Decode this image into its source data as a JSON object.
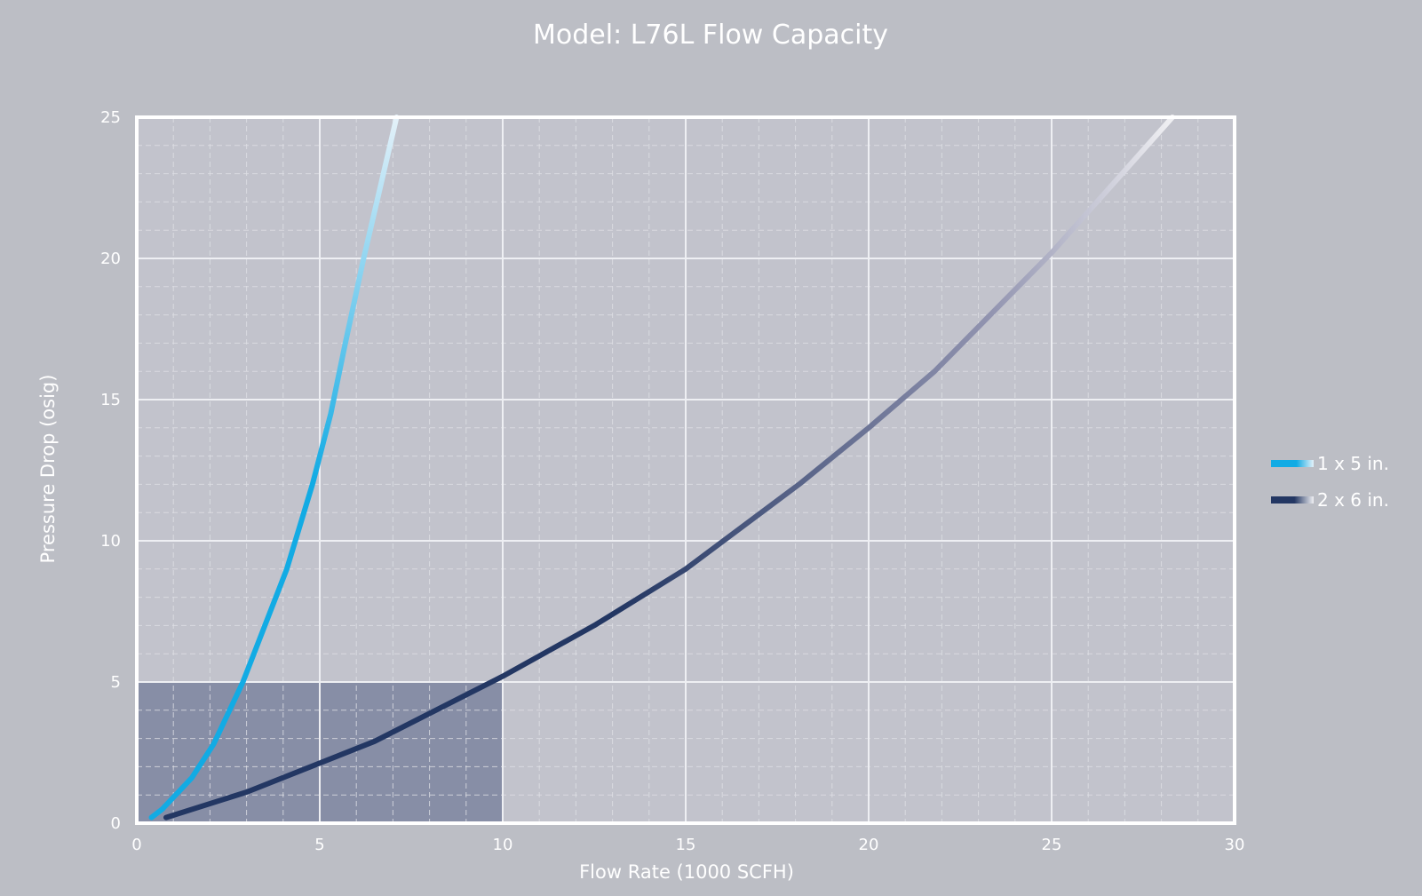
{
  "chart_data": {
    "type": "line",
    "title": "Model: L76L Flow Capacity",
    "xlabel": "Flow Rate (1000 SCFH)",
    "ylabel": "Pressure Drop (osig)",
    "xlim": [
      0,
      30
    ],
    "ylim": [
      0,
      25
    ],
    "x_ticks": [
      "0",
      "5",
      "10",
      "15",
      "20",
      "25",
      "30"
    ],
    "y_ticks": [
      "0",
      "5",
      "10",
      "15",
      "20",
      "25"
    ],
    "grid": true,
    "minor_grid": true,
    "legend_position": "right",
    "highlight_region": {
      "x": [
        0,
        10
      ],
      "y": [
        0,
        5
      ]
    },
    "colors": {
      "background": "#bcbec5",
      "plot_area": "#c2c3cc",
      "highlight": "#878ea6",
      "frame": "#ffffff"
    },
    "series": [
      {
        "name": "1 x 5 in.",
        "color": "#12abe4",
        "color_end": "#e4f1f9",
        "points": [
          [
            0.4,
            0.2
          ],
          [
            0.7,
            0.5
          ],
          [
            1.5,
            1.6
          ],
          [
            2.1,
            2.8
          ],
          [
            2.9,
            5.0
          ],
          [
            3.5,
            7.0
          ],
          [
            4.1,
            9.0
          ],
          [
            4.8,
            12.0
          ],
          [
            5.3,
            14.5
          ],
          [
            5.7,
            17.0
          ],
          [
            6.2,
            20.0
          ],
          [
            7.1,
            25.0
          ]
        ]
      },
      {
        "name": "2 x 6 in.",
        "color": "#233763",
        "color_end": "#f0f0f3",
        "points": [
          [
            0.8,
            0.2
          ],
          [
            3.0,
            1.1
          ],
          [
            6.5,
            2.9
          ],
          [
            10.0,
            5.2
          ],
          [
            12.5,
            7.0
          ],
          [
            15.0,
            9.0
          ],
          [
            18.1,
            12.0
          ],
          [
            20.0,
            14.0
          ],
          [
            21.8,
            16.0
          ],
          [
            25.0,
            20.2
          ],
          [
            28.3,
            25.0
          ]
        ]
      }
    ]
  }
}
